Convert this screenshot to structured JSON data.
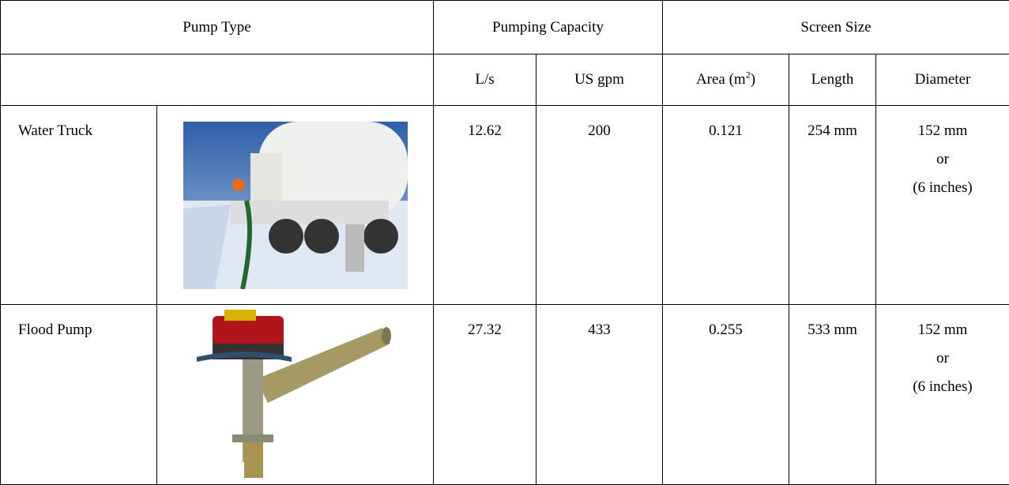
{
  "table": {
    "header": {
      "pump_type": "Pump Type",
      "pumping_capacity": "Pumping Capacity",
      "screen_size": "Screen Size"
    },
    "subheader": {
      "ls": "L/s",
      "usgpm": "US gpm",
      "area": [
        "Area (m",
        "2",
        ")"
      ],
      "length": "Length",
      "diameter": "Diameter"
    },
    "rows": [
      {
        "name": "Water Truck",
        "ls": 12.62,
        "usgpm": 200,
        "area": 0.121,
        "length": "254 mm",
        "diameter": [
          "152 mm",
          "or",
          "(6 inches)"
        ]
      },
      {
        "name": "Flood Pump",
        "ls": 27.32,
        "usgpm": 433,
        "area": 0.255,
        "length": "533 mm",
        "diameter": [
          "152 mm",
          "or",
          "(6 inches)"
        ]
      }
    ]
  }
}
